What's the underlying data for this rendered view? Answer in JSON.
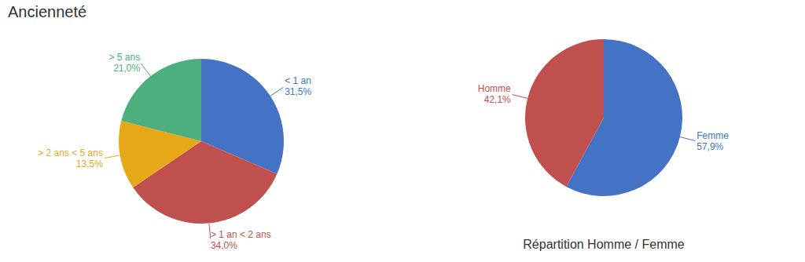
{
  "chart_data": [
    {
      "type": "pie",
      "title": "Ancienneté",
      "categories": [
        "< 1 an",
        "> 1 an < 2 ans",
        "> 2 ans < 5 ans",
        "> 5 ans"
      ],
      "values": [
        31.5,
        34.0,
        13.5,
        21.0
      ],
      "value_labels": [
        "31,5%",
        "34,0%",
        "13,5%",
        "21,0%"
      ],
      "colors": [
        "#4472C4",
        "#C0504D",
        "#E6A817",
        "#4CAF7D"
      ],
      "data_labels": true
    },
    {
      "type": "pie",
      "title": "Répartition Homme / Femme",
      "categories": [
        "Femme",
        "Homme"
      ],
      "values": [
        57.9,
        42.1
      ],
      "value_labels": [
        "57,9%",
        "42,1%"
      ],
      "colors": [
        "#4472C4",
        "#C0504D"
      ],
      "data_labels": true
    }
  ]
}
